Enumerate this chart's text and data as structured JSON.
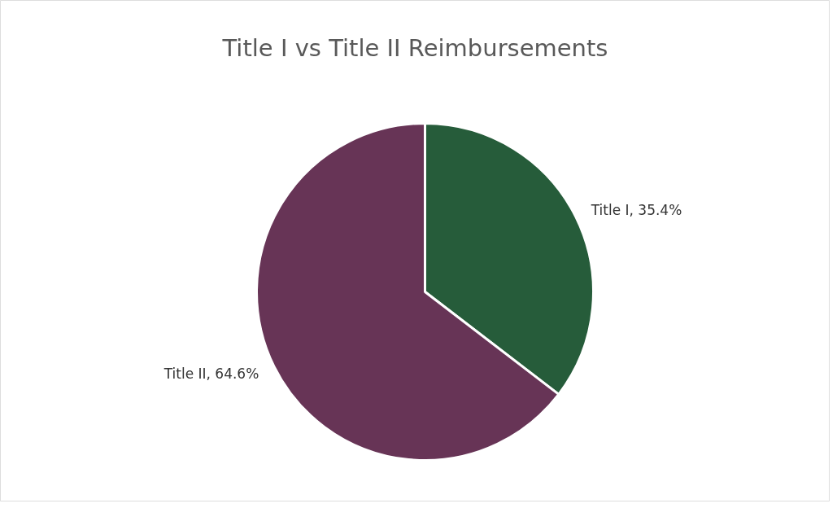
{
  "chart_data": {
    "type": "pie",
    "title": "Title I vs Title II Reimbursements",
    "categories": [
      "Title I",
      "Title II"
    ],
    "values": [
      35.4,
      64.6
    ],
    "colors": [
      "#265c3a",
      "#673456"
    ],
    "value_labels": [
      ", 35.4%",
      ", 64.6%"
    ]
  }
}
